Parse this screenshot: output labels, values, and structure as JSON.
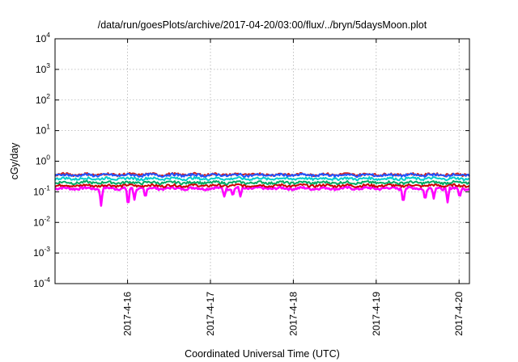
{
  "chart_data": {
    "type": "line",
    "title": "/data/run/goesPlots/archive/2017-04-20/03:00/flux/../bryn/5daysMoon.plot",
    "xlabel": "Coordinated Universal Time (UTC)",
    "ylabel": "cGy/day",
    "yscale": "log",
    "ylim": [
      0.0001,
      10000
    ],
    "xlim": [
      "2017-04-15T03:00",
      "2017-04-20T03:00"
    ],
    "grid": true,
    "legend": "none",
    "y_ticks": [
      {
        "value": 0.0001,
        "base": "10",
        "exp": "-4"
      },
      {
        "value": 0.001,
        "base": "10",
        "exp": "-3"
      },
      {
        "value": 0.01,
        "base": "10",
        "exp": "-2"
      },
      {
        "value": 0.1,
        "base": "10",
        "exp": "-1"
      },
      {
        "value": 1,
        "base": "10",
        "exp": "0"
      },
      {
        "value": 10,
        "base": "10",
        "exp": "1"
      },
      {
        "value": 100,
        "base": "10",
        "exp": "2"
      },
      {
        "value": 1000,
        "base": "10",
        "exp": "3"
      },
      {
        "value": 10000,
        "base": "10",
        "exp": "4"
      }
    ],
    "x_ticks": [
      {
        "value": "2017-04-16T00:00",
        "label": "2017-4-16"
      },
      {
        "value": "2017-04-17T00:00",
        "label": "2017-4-17"
      },
      {
        "value": "2017-04-18T00:00",
        "label": "2017-4-18"
      },
      {
        "value": "2017-04-19T00:00",
        "label": "2017-4-19"
      },
      {
        "value": "2017-04-20T00:00",
        "label": "2017-4-20"
      }
    ],
    "series": [
      {
        "color": "#ff00ff",
        "base": 0.13,
        "dips": [
          {
            "t": "2017-04-15T16:20",
            "min": 0.035
          },
          {
            "t": "2017-04-16T00:10",
            "min": 0.03
          },
          {
            "t": "2017-04-16T02:00",
            "min": 0.055
          },
          {
            "t": "2017-04-16T05:10",
            "min": 0.06
          },
          {
            "t": "2017-04-17T04:00",
            "min": 0.07
          },
          {
            "t": "2017-04-17T06:30",
            "min": 0.07
          },
          {
            "t": "2017-04-17T08:40",
            "min": 0.07
          },
          {
            "t": "2017-04-19T07:50",
            "min": 0.04
          },
          {
            "t": "2017-04-19T14:10",
            "min": 0.05
          },
          {
            "t": "2017-04-19T16:40",
            "min": 0.06
          },
          {
            "t": "2017-04-19T20:40",
            "min": 0.045
          },
          {
            "t": "2017-04-20T00:10",
            "min": 0.06
          }
        ]
      },
      {
        "color": "#cc0000",
        "base": 0.16
      },
      {
        "color": "#00aa66",
        "base": 0.2
      },
      {
        "color": "#00cccc",
        "base": 0.27
      },
      {
        "color": "#cc2222",
        "base": 0.37
      },
      {
        "color": "#2255ff",
        "base": 0.35
      }
    ]
  }
}
